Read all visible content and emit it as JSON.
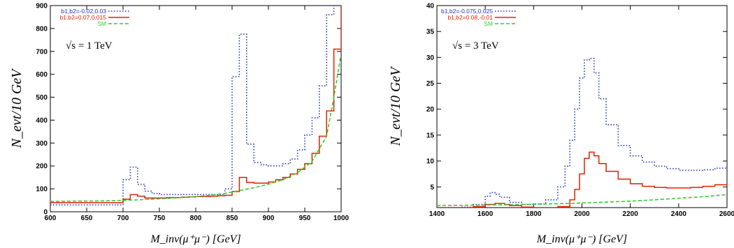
{
  "chart_data": [
    {
      "type": "line",
      "step": true,
      "annotation": "√s = 1 TeV",
      "xlabel": "M_inv(μ⁺μ⁻) [GeV]",
      "ylabel": "N_evt/10 GeV",
      "xlim": [
        600,
        1000
      ],
      "ylim": [
        0,
        900
      ],
      "xticks": [
        "600",
        "650",
        "700",
        "750",
        "800",
        "850",
        "900",
        "950",
        "1000"
      ],
      "yticks": [
        "0",
        "100",
        "200",
        "300",
        "400",
        "500",
        "600",
        "700",
        "800",
        "900"
      ],
      "legend_position": "top-left",
      "series": [
        {
          "name": "b1,b2=-0.02,0.03",
          "color": "#2233bb",
          "style": "dotted",
          "x": [
            600,
            610,
            620,
            630,
            640,
            650,
            660,
            670,
            680,
            690,
            700,
            710,
            720,
            730,
            740,
            750,
            760,
            770,
            780,
            790,
            800,
            810,
            820,
            830,
            840,
            850,
            860,
            870,
            880,
            890,
            900,
            910,
            920,
            930,
            940,
            950,
            960,
            970,
            980,
            990,
            1000
          ],
          "y": [
            30,
            30,
            30,
            30,
            30,
            30,
            30,
            30,
            30,
            30,
            140,
            195,
            120,
            90,
            80,
            75,
            75,
            75,
            75,
            75,
            75,
            75,
            75,
            75,
            100,
            590,
            775,
            295,
            215,
            205,
            200,
            200,
            210,
            230,
            270,
            335,
            410,
            550,
            860,
            900,
            900
          ]
        },
        {
          "name": "b1,b2=0.07,0.015",
          "color": "#dd2200",
          "style": "solid",
          "x": [
            600,
            610,
            620,
            630,
            640,
            650,
            660,
            670,
            680,
            690,
            700,
            710,
            720,
            730,
            740,
            750,
            760,
            770,
            780,
            790,
            800,
            810,
            820,
            830,
            840,
            850,
            860,
            870,
            880,
            890,
            900,
            910,
            920,
            930,
            940,
            950,
            960,
            970,
            980,
            990,
            1000
          ],
          "y": [
            40,
            40,
            40,
            40,
            40,
            40,
            40,
            40,
            40,
            40,
            55,
            75,
            68,
            60,
            60,
            60,
            62,
            62,
            64,
            65,
            66,
            67,
            68,
            70,
            72,
            88,
            150,
            128,
            125,
            125,
            130,
            140,
            150,
            165,
            185,
            210,
            255,
            330,
            440,
            710,
            900
          ]
        },
        {
          "name": "SM",
          "color": "#33cc33",
          "style": "dashed",
          "x": [
            600,
            620,
            640,
            660,
            680,
            700,
            720,
            740,
            760,
            780,
            800,
            820,
            840,
            860,
            880,
            900,
            920,
            940,
            960,
            980,
            990,
            1000
          ],
          "y": [
            45,
            46,
            47,
            47,
            48,
            50,
            52,
            55,
            58,
            62,
            66,
            72,
            80,
            92,
            105,
            120,
            140,
            170,
            220,
            330,
            500,
            690
          ]
        }
      ]
    },
    {
      "type": "line",
      "step": true,
      "annotation": "√s = 3 TeV",
      "xlabel": "M_inv(μ⁺μ⁻) [GeV]",
      "ylabel": "N_evt/10 GeV",
      "xlim": [
        1400,
        2600
      ],
      "ylim": [
        1,
        40
      ],
      "xticks": [
        "1400",
        "1600",
        "1800",
        "2000",
        "2200",
        "2400",
        "2600"
      ],
      "yticks": [
        "5",
        "10",
        "15",
        "20",
        "25",
        "30",
        "35",
        "40"
      ],
      "legend_position": "top-left",
      "series": [
        {
          "name": "b1,b2=-0.075,0.025",
          "color": "#2233bb",
          "style": "dotted",
          "x": [
            1400,
            1450,
            1500,
            1550,
            1600,
            1620,
            1640,
            1660,
            1700,
            1750,
            1800,
            1850,
            1900,
            1930,
            1950,
            1970,
            1990,
            2010,
            2030,
            2050,
            2070,
            2100,
            2150,
            2200,
            2250,
            2300,
            2350,
            2400,
            2450,
            2500,
            2550,
            2600
          ],
          "y": [
            1.0,
            1.0,
            1.1,
            1.6,
            3.2,
            3.9,
            3.6,
            3.0,
            2.0,
            1.6,
            1.7,
            2.5,
            5.0,
            9.0,
            14.0,
            20.0,
            26.0,
            29.5,
            29.8,
            27.0,
            22.0,
            17.0,
            13.0,
            11.0,
            9.8,
            9.0,
            8.5,
            8.2,
            8.2,
            8.3,
            8.6,
            9.0
          ]
        },
        {
          "name": "b1,b2=0.08,-0.01",
          "color": "#dd2200",
          "style": "solid",
          "x": [
            1400,
            1450,
            1500,
            1550,
            1600,
            1640,
            1680,
            1700,
            1750,
            1800,
            1850,
            1900,
            1950,
            1970,
            1990,
            2010,
            2030,
            2050,
            2070,
            2100,
            2150,
            2200,
            2250,
            2300,
            2350,
            2400,
            2450,
            2500,
            2550,
            2600
          ],
          "y": [
            1.0,
            1.0,
            1.0,
            1.2,
            1.6,
            1.8,
            1.6,
            1.4,
            1.1,
            0.9,
            0.9,
            1.2,
            2.5,
            4.5,
            7.5,
            10.5,
            11.7,
            11.0,
            9.5,
            8.0,
            6.5,
            5.6,
            5.1,
            4.9,
            4.8,
            4.8,
            4.9,
            5.1,
            5.4,
            5.8
          ]
        },
        {
          "name": "SM",
          "color": "#33cc33",
          "style": "dashed",
          "x": [
            1400,
            1500,
            1600,
            1700,
            1800,
            1900,
            2000,
            2100,
            2200,
            2300,
            2400,
            2500,
            2600
          ],
          "y": [
            1.4,
            1.45,
            1.5,
            1.55,
            1.65,
            1.75,
            1.9,
            2.05,
            2.25,
            2.5,
            2.8,
            3.1,
            3.5
          ]
        }
      ]
    }
  ]
}
